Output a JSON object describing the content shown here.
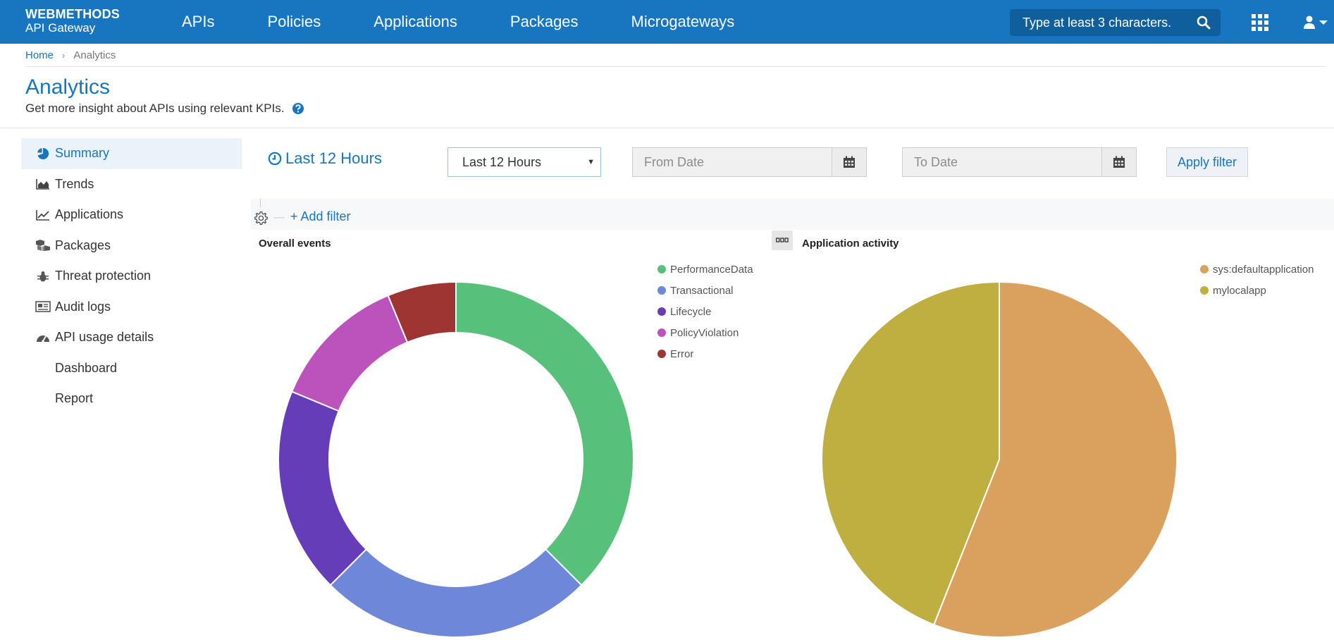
{
  "header": {
    "brand_line1": "WEBMETHODS",
    "brand_line2": "API Gateway",
    "nav": [
      "APIs",
      "Policies",
      "Applications",
      "Packages",
      "Microgateways"
    ],
    "search_placeholder": "Type at least 3 characters."
  },
  "breadcrumb": {
    "home": "Home",
    "separator": "›",
    "current": "Analytics"
  },
  "page": {
    "title": "Analytics",
    "subtitle": "Get more insight about APIs using relevant KPIs."
  },
  "sidebar": {
    "items": [
      {
        "label": "Summary",
        "icon": "pie-icon",
        "active": true
      },
      {
        "label": "Trends",
        "icon": "area-chart-icon"
      },
      {
        "label": "Applications",
        "icon": "line-chart-icon"
      },
      {
        "label": "Packages",
        "icon": "cubes-icon"
      },
      {
        "label": "Threat protection",
        "icon": "bug-icon"
      },
      {
        "label": "Audit logs",
        "icon": "newspaper-icon"
      },
      {
        "label": "API usage details",
        "icon": "dashboard-icon"
      },
      {
        "label": "Dashboard",
        "sub": true
      },
      {
        "label": "Report",
        "sub": true
      }
    ]
  },
  "filters": {
    "range_title": "Last 12 Hours",
    "range_select": "Last 12 Hours",
    "from_placeholder": "From Date",
    "to_placeholder": "To Date",
    "apply_label": "Apply filter",
    "add_filter_label": "+ Add filter"
  },
  "chart_data": [
    {
      "type": "pie",
      "variant": "donut",
      "title": "Overall events",
      "categories": [
        "PerformanceData",
        "Transactional",
        "Lifecycle",
        "PolicyViolation",
        "Error"
      ],
      "values": [
        36,
        24,
        18,
        12,
        6
      ],
      "colors": [
        "#57c17b",
        "#6f87d8",
        "#663db8",
        "#bc52bc",
        "#9e3533"
      ],
      "legend": "right"
    },
    {
      "type": "pie",
      "title": "Application activity",
      "categories": [
        "sys:defaultapplication",
        "mylocalapp"
      ],
      "values": [
        56,
        44
      ],
      "colors": [
        "#daa05d",
        "#bfae40"
      ],
      "legend": "right"
    }
  ],
  "colors": {
    "header_bg": "#1776bf",
    "accent": "#1776bf"
  }
}
